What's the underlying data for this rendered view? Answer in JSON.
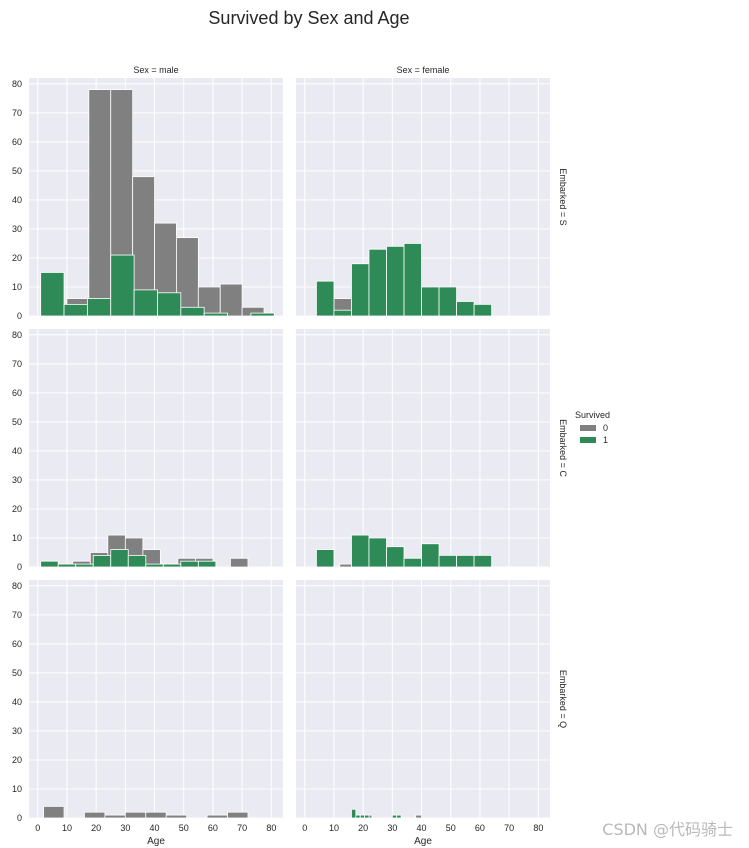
{
  "watermark": "CSDN @代码骑士",
  "chart_data": {
    "type": "histogram",
    "title": "Survived by Sex and Age",
    "xlabel": "Age",
    "ylabel": "",
    "xlim": [
      -3,
      84
    ],
    "ylim": [
      0,
      82
    ],
    "xticks": [
      0,
      10,
      20,
      30,
      40,
      50,
      60,
      70,
      80
    ],
    "yticks": [
      0,
      10,
      20,
      30,
      40,
      50,
      60,
      70,
      80
    ],
    "grid": true,
    "legend": {
      "title": "Survived",
      "position": "right",
      "entries": [
        {
          "label": "0",
          "color": "#808080"
        },
        {
          "label": "1",
          "color": "#2e8b57"
        }
      ]
    },
    "col_titles": [
      "Sex = male",
      "Sex = female"
    ],
    "row_titles": [
      "Embarked = S",
      "Embarked = C",
      "Embarked = Q"
    ],
    "panels": [
      {
        "row": "Embarked = S",
        "col": "Sex = male",
        "series": [
          {
            "name": "0",
            "bins": [
              [
                10,
                17.5,
                6
              ],
              [
                17.5,
                25,
                78
              ],
              [
                25,
                32.5,
                78
              ],
              [
                32.5,
                40,
                48
              ],
              [
                40,
                47.5,
                32
              ],
              [
                47.5,
                55,
                27
              ],
              [
                55,
                62.5,
                10
              ],
              [
                62.5,
                70,
                11
              ],
              [
                70,
                77.5,
                3
              ]
            ]
          },
          {
            "name": "1",
            "bins": [
              [
                1,
                9,
                15
              ],
              [
                9,
                17,
                4
              ],
              [
                17,
                25,
                6
              ],
              [
                25,
                33,
                21
              ],
              [
                33,
                41,
                9
              ],
              [
                41,
                49,
                8
              ],
              [
                49,
                57,
                3
              ],
              [
                57,
                65,
                1
              ],
              [
                73,
                81,
                1
              ]
            ]
          }
        ]
      },
      {
        "row": "Embarked = S",
        "col": "Sex = female",
        "series": [
          {
            "name": "0",
            "bins": [
              [
                10,
                16,
                6
              ]
            ]
          },
          {
            "name": "1",
            "bins": [
              [
                4,
                10,
                12
              ],
              [
                10,
                16,
                2
              ],
              [
                16,
                22,
                18
              ],
              [
                22,
                28,
                23
              ],
              [
                28,
                34,
                24
              ],
              [
                34,
                40,
                25
              ],
              [
                40,
                46,
                10
              ],
              [
                46,
                52,
                10
              ],
              [
                52,
                58,
                5
              ],
              [
                58,
                64,
                4
              ]
            ]
          }
        ]
      },
      {
        "row": "Embarked = C",
        "col": "Sex = male",
        "series": [
          {
            "name": "0",
            "bins": [
              [
                12,
                18,
                2
              ],
              [
                18,
                24,
                5
              ],
              [
                24,
                30,
                11
              ],
              [
                30,
                36,
                10
              ],
              [
                36,
                42,
                6
              ],
              [
                42,
                48,
                1
              ],
              [
                48,
                54,
                3
              ],
              [
                54,
                60,
                3
              ],
              [
                66,
                72,
                3
              ]
            ]
          },
          {
            "name": "1",
            "bins": [
              [
                1,
                7,
                2
              ],
              [
                7,
                13,
                1
              ],
              [
                13,
                19,
                1
              ],
              [
                19,
                25,
                4
              ],
              [
                25,
                31,
                6
              ],
              [
                31,
                37,
                4
              ],
              [
                37,
                43,
                1
              ],
              [
                43,
                49,
                1
              ],
              [
                49,
                55,
                2
              ],
              [
                55,
                61,
                2
              ]
            ]
          }
        ]
      },
      {
        "row": "Embarked = C",
        "col": "Sex = female",
        "series": [
          {
            "name": "0",
            "bins": [
              [
                12,
                16,
                1
              ]
            ]
          },
          {
            "name": "1",
            "bins": [
              [
                4,
                10,
                6
              ],
              [
                16,
                22,
                11
              ],
              [
                22,
                28,
                10
              ],
              [
                28,
                34,
                7
              ],
              [
                34,
                40,
                3
              ],
              [
                40,
                46,
                8
              ],
              [
                46,
                52,
                4
              ],
              [
                52,
                58,
                4
              ],
              [
                58,
                64,
                4
              ]
            ]
          }
        ]
      },
      {
        "row": "Embarked = Q",
        "col": "Sex = male",
        "series": [
          {
            "name": "0",
            "bins": [
              [
                2,
                9,
                4
              ],
              [
                16,
                23,
                2
              ],
              [
                23,
                30,
                1
              ],
              [
                30,
                37,
                2
              ],
              [
                37,
                44,
                2
              ],
              [
                44,
                51,
                1
              ],
              [
                58,
                65,
                1
              ],
              [
                65,
                72,
                2
              ]
            ]
          },
          {
            "name": "1",
            "bins": []
          }
        ]
      },
      {
        "row": "Embarked = Q",
        "col": "Sex = female",
        "series": [
          {
            "name": "0",
            "bins": [
              [
                20,
                21.5,
                1
              ],
              [
                21.5,
                23,
                1
              ],
              [
                30,
                31.5,
                1
              ],
              [
                38,
                40,
                1
              ]
            ]
          },
          {
            "name": "1",
            "bins": [
              [
                16,
                17.5,
                3
              ],
              [
                17.5,
                19,
                1
              ],
              [
                19,
                20.5,
                1
              ],
              [
                20.5,
                22,
                1
              ],
              [
                30,
                31.5,
                1
              ],
              [
                31.5,
                33,
                1
              ]
            ]
          }
        ]
      }
    ]
  }
}
